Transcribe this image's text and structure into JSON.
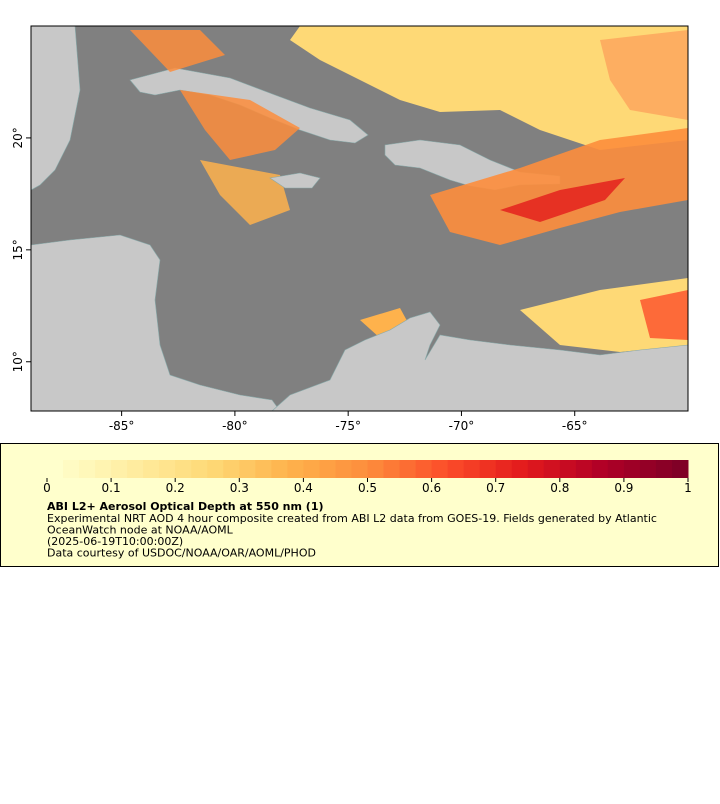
{
  "map": {
    "xlim": [
      -89,
      -60
    ],
    "ylim": [
      7.8,
      25
    ],
    "xticks": [
      {
        "value": -85,
        "label": "-85°"
      },
      {
        "value": -80,
        "label": "-80°"
      },
      {
        "value": -75,
        "label": "-75°"
      },
      {
        "value": -70,
        "label": "-70°"
      },
      {
        "value": -65,
        "label": "-65°"
      }
    ],
    "yticks": [
      {
        "value": 10,
        "label": "10°"
      },
      {
        "value": 15,
        "label": "15°"
      },
      {
        "value": 20,
        "label": "20°"
      }
    ]
  },
  "colorbar": {
    "range": [
      0,
      1
    ],
    "ticks": [
      0,
      0.1,
      0.2,
      0.3,
      0.4,
      0.5,
      0.6,
      0.7,
      0.8,
      0.9,
      1
    ],
    "colors": [
      "#ffffcc",
      "#ffeda0",
      "#fed976",
      "#feb24c",
      "#fd8d3c",
      "#fc4e2a",
      "#e31a1c",
      "#b10026",
      "#800026"
    ]
  },
  "legend": {
    "title": "ABI L2+ Aerosol Optical Depth at 550 nm (1)",
    "lines": [
      "Experimental NRT AOD 4 hour composite created from ABI L2 data from GOES-19. Fields generated by Atlantic",
      "OceanWatch node at NOAA/AOML",
      "(2025-06-19T10:00:00Z)",
      "Data courtesy of USDOC/NOAA/OAR/AOML/PHOD"
    ]
  }
}
